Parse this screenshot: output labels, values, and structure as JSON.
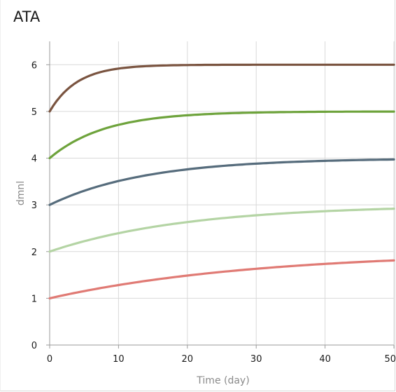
{
  "chart_data": {
    "type": "line",
    "title": "ATA",
    "xlabel": "Time (day)",
    "ylabel": "dmnl",
    "xlim": [
      0,
      50
    ],
    "ylim": [
      0,
      6.5
    ],
    "xticks": [
      0,
      10,
      20,
      30,
      40,
      50
    ],
    "yticks": [
      0,
      1,
      2,
      3,
      4,
      5,
      6
    ],
    "grid": true,
    "legend": "none",
    "series": [
      {
        "color": "#7a5440",
        "start": 5,
        "end": 6,
        "tau": 4,
        "x": [
          0,
          5,
          10,
          15,
          20,
          30,
          40,
          50
        ],
        "y": [
          5.0,
          5.71,
          5.92,
          5.98,
          5.99,
          6.0,
          6.0,
          6.0
        ]
      },
      {
        "color": "#6ea33c",
        "start": 4,
        "end": 5,
        "tau": 8,
        "x": [
          0,
          5,
          10,
          15,
          20,
          30,
          40,
          50
        ],
        "y": [
          4.0,
          4.46,
          4.71,
          4.85,
          4.92,
          4.98,
          4.99,
          5.0
        ]
      },
      {
        "color": "#566c7c",
        "start": 3,
        "end": 4,
        "tau": 14,
        "x": [
          0,
          5,
          10,
          15,
          20,
          30,
          40,
          50
        ],
        "y": [
          3.0,
          3.3,
          3.51,
          3.66,
          3.76,
          3.88,
          3.94,
          3.97
        ]
      },
      {
        "color": "#b4d4a4",
        "start": 2,
        "end": 3,
        "tau": 20,
        "x": [
          0,
          5,
          10,
          15,
          20,
          30,
          40,
          50
        ],
        "y": [
          2.0,
          2.22,
          2.39,
          2.53,
          2.63,
          2.78,
          2.86,
          2.92
        ]
      },
      {
        "color": "#e07a74",
        "start": 1,
        "end": 2,
        "tau": 30,
        "x": [
          0,
          5,
          10,
          15,
          20,
          30,
          40,
          50
        ],
        "y": [
          1.0,
          1.15,
          1.28,
          1.39,
          1.49,
          1.63,
          1.74,
          1.81
        ]
      }
    ]
  }
}
